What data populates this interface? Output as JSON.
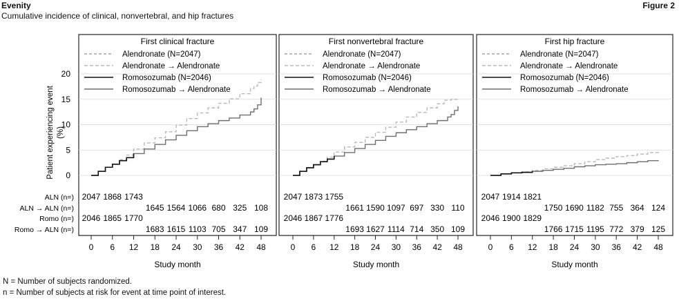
{
  "header": {
    "title": "Evenity",
    "subtitle": "Cumulative incidence of clinical, nonvertebral, and hip fractures",
    "figure": "Figure 2"
  },
  "footnotes": [
    "N = Number of subjects randomized.",
    "n = Number of subjects at risk for event at time point of interest."
  ],
  "colors": {
    "alendronate": "#7a7a7a",
    "alendronate_to_alendronate": "#b9b9b9",
    "romosozumab": "#111111",
    "romosozumab_to_alendronate": "#6e6e6e"
  },
  "chart_data": {
    "type": "line",
    "ylabel": "Patient experiencing event (%)",
    "xlabel": "Study month",
    "xlim": [
      0,
      48
    ],
    "ylim": [
      0,
      20
    ],
    "xticks": [
      0,
      6,
      12,
      18,
      24,
      30,
      36,
      42,
      48
    ],
    "yticks": [
      0,
      5,
      10,
      15,
      20
    ],
    "legend": [
      "Alendronate (N=2047)",
      "Alendronate → Alendronate",
      "Romosozumab (N=2046)",
      "Romosozumab → Alendronate"
    ],
    "risk_labels": [
      "ALN (n=)",
      "ALN → ALN (n=)",
      "Romo (n=)",
      "Romo → ALN (n=)"
    ],
    "panels": [
      {
        "title": "First clinical fracture",
        "series": [
          {
            "name": "Alendronate → Alendronate",
            "x": [
              0,
              2,
              4,
              6,
              8,
              10,
              12,
              15,
              18,
              21,
              24,
              27,
              30,
              33,
              36,
              39,
              42,
              45,
              46,
              47,
              48
            ],
            "y": [
              0,
              0.8,
              1.6,
              2.2,
              3.1,
              4.0,
              5.2,
              6.4,
              7.4,
              8.6,
              9.9,
              11.2,
              12.3,
              13.3,
              14.2,
              15.1,
              16.1,
              17.1,
              17.6,
              18.3,
              18.9
            ]
          },
          {
            "name": "Romosozumab → Alendronate",
            "x": [
              0,
              2,
              4,
              6,
              8,
              10,
              12,
              15,
              18,
              21,
              24,
              27,
              30,
              33,
              36,
              39,
              42,
              45,
              46,
              47,
              48
            ],
            "y": [
              0,
              0.8,
              1.6,
              2.2,
              2.9,
              3.5,
              4.3,
              5.2,
              6.1,
              7.0,
              7.9,
              8.8,
              9.6,
              10.2,
              10.8,
              11.3,
              11.9,
              12.5,
              13.1,
              13.9,
              15.3
            ]
          }
        ],
        "at_risk": {
          "aln": {
            "months": [
              0,
              6,
              12
            ],
            "n": [
              2047,
              1868,
              1743
            ]
          },
          "aln_aln": {
            "months": [
              18,
              24,
              30,
              36,
              42,
              48
            ],
            "n": [
              1645,
              1564,
              1066,
              680,
              325,
              108
            ]
          },
          "romo": {
            "months": [
              0,
              6,
              12
            ],
            "n": [
              2046,
              1865,
              1770
            ]
          },
          "romo_aln": {
            "months": [
              18,
              24,
              30,
              36,
              42,
              48
            ],
            "n": [
              1683,
              1615,
              1103,
              705,
              347,
              109
            ]
          }
        }
      },
      {
        "title": "First nonvertebral fracture",
        "series": [
          {
            "name": "Alendronate → Alendronate",
            "x": [
              0,
              2,
              4,
              6,
              8,
              10,
              12,
              15,
              18,
              21,
              24,
              27,
              30,
              33,
              36,
              39,
              42,
              44,
              46,
              48
            ],
            "y": [
              0,
              0.8,
              1.5,
              2.1,
              2.8,
              3.6,
              4.6,
              5.6,
              6.5,
              7.5,
              8.5,
              9.5,
              10.5,
              11.5,
              12.4,
              13.3,
              14.1,
              14.8,
              15.0,
              15.0
            ]
          },
          {
            "name": "Romosozumab → Alendronate",
            "x": [
              0,
              2,
              4,
              6,
              8,
              10,
              12,
              15,
              18,
              21,
              24,
              27,
              30,
              33,
              36,
              39,
              42,
              45,
              46,
              47,
              48
            ],
            "y": [
              0,
              0.8,
              1.5,
              2.1,
              2.7,
              3.2,
              3.8,
              4.5,
              5.3,
              6.1,
              6.9,
              7.7,
              8.4,
              9.0,
              9.6,
              10.2,
              10.8,
              11.5,
              12.0,
              12.8,
              13.6
            ]
          }
        ],
        "at_risk": {
          "aln": {
            "months": [
              0,
              6,
              12
            ],
            "n": [
              2047,
              1873,
              1755
            ]
          },
          "aln_aln": {
            "months": [
              18,
              24,
              30,
              36,
              42,
              48
            ],
            "n": [
              1661,
              1590,
              1097,
              697,
              330,
              110
            ]
          },
          "romo": {
            "months": [
              0,
              6,
              12
            ],
            "n": [
              2046,
              1867,
              1776
            ]
          },
          "romo_aln": {
            "months": [
              18,
              24,
              30,
              36,
              42,
              48
            ],
            "n": [
              1693,
              1627,
              1114,
              714,
              350,
              109
            ]
          }
        }
      },
      {
        "title": "First hip fracture",
        "series": [
          {
            "name": "Alendronate → Alendronate",
            "x": [
              0,
              3,
              6,
              9,
              12,
              15,
              18,
              21,
              24,
              27,
              30,
              33,
              36,
              39,
              42,
              45,
              48
            ],
            "y": [
              0,
              0.3,
              0.5,
              0.7,
              1.0,
              1.3,
              1.6,
              1.9,
              2.3,
              2.7,
              3.1,
              3.4,
              3.7,
              3.9,
              4.2,
              4.5,
              4.8
            ]
          },
          {
            "name": "Romosozumab → Alendronate",
            "x": [
              0,
              3,
              6,
              9,
              12,
              15,
              18,
              21,
              24,
              27,
              30,
              33,
              36,
              39,
              42,
              45,
              48
            ],
            "y": [
              0,
              0.3,
              0.5,
              0.6,
              0.8,
              1.0,
              1.2,
              1.4,
              1.7,
              1.9,
              2.1,
              2.2,
              2.3,
              2.5,
              2.7,
              2.9,
              3.0
            ]
          }
        ],
        "at_risk": {
          "aln": {
            "months": [
              0,
              6,
              12
            ],
            "n": [
              2047,
              1914,
              1821
            ]
          },
          "aln_aln": {
            "months": [
              18,
              24,
              30,
              36,
              42,
              48
            ],
            "n": [
              1750,
              1690,
              1182,
              755,
              364,
              124
            ]
          },
          "romo": {
            "months": [
              0,
              6,
              12
            ],
            "n": [
              2046,
              1900,
              1829
            ]
          },
          "romo_aln": {
            "months": [
              18,
              24,
              30,
              36,
              42,
              48
            ],
            "n": [
              1766,
              1715,
              1195,
              772,
              379,
              125
            ]
          }
        }
      }
    ]
  }
}
